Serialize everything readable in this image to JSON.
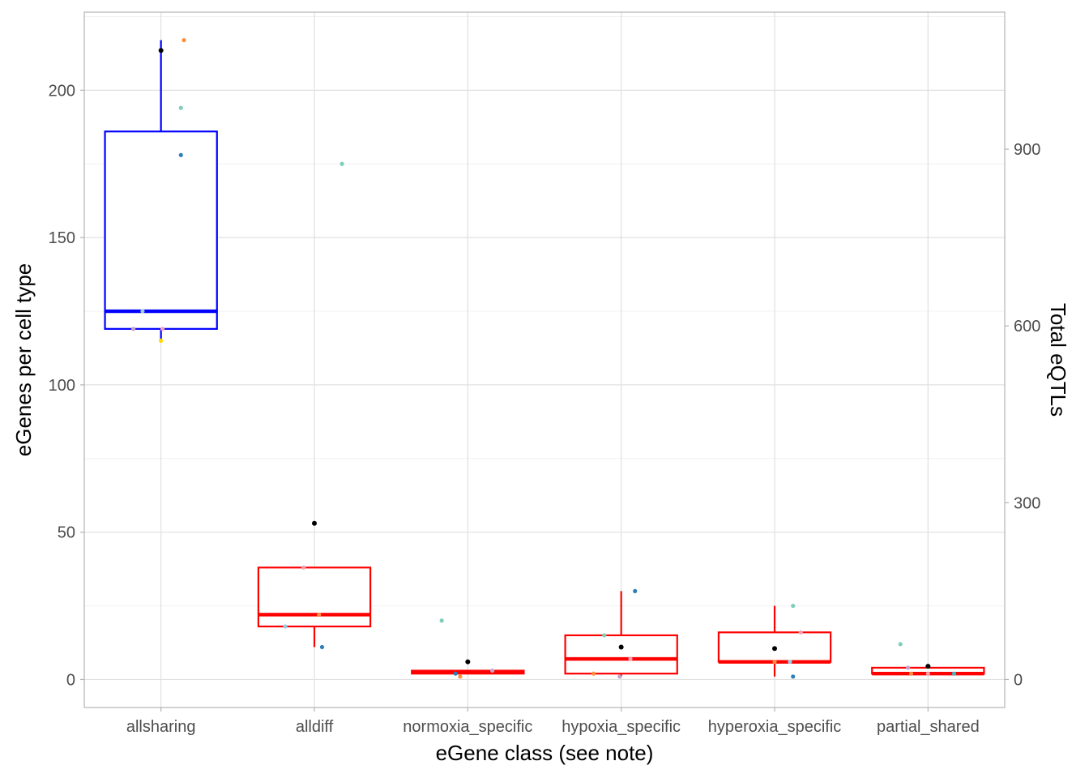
{
  "chart_data": {
    "type": "box",
    "xlabel": "eGene class (see note)",
    "ylabel": "eGenes per cell type",
    "y2label": "Total eQTLs",
    "categories": [
      "allsharing",
      "alldiff",
      "normoxia_specific",
      "hypoxia_specific",
      "hyperoxia_specific",
      "partial_shared"
    ],
    "ylim": [
      -9.5,
      226.5
    ],
    "yticks": [
      0,
      50,
      100,
      150,
      200
    ],
    "y2ticks": [
      0,
      300,
      600,
      900
    ],
    "y2_per_y": 5,
    "grid": true,
    "colors": {
      "allsharing_box": "#0000ff",
      "other_box": "#ff0000",
      "total_point": "#000000",
      "cell_points": [
        "#7fcdbb",
        "#41b6c4",
        "#2c7fb8",
        "#fd8d3c",
        "#fa9fb5",
        "#9ecae1",
        "#c6a2c9"
      ]
    },
    "boxes": [
      {
        "category": "allsharing",
        "color": "#0000ff",
        "q1": 119,
        "median": 125,
        "q3": 186,
        "whisker_low": 115,
        "whisker_high": 217
      },
      {
        "category": "alldiff",
        "color": "#ff0000",
        "q1": 18,
        "median": 22,
        "q3": 38,
        "whisker_low": 11,
        "whisker_high": 38
      },
      {
        "category": "normoxia_specific",
        "color": "#ff0000",
        "q1": 2,
        "median": 2.5,
        "q3": 3,
        "whisker_low": 2,
        "whisker_high": 3
      },
      {
        "category": "hypoxia_specific",
        "color": "#ff0000",
        "q1": 2,
        "median": 7,
        "q3": 15,
        "whisker_low": 1,
        "whisker_high": 30
      },
      {
        "category": "hyperoxia_specific",
        "color": "#ff0000",
        "q1": 6,
        "median": 6,
        "q3": 16,
        "whisker_low": 1,
        "whisker_high": 25
      },
      {
        "category": "partial_shared",
        "color": "#ff0000",
        "q1": 2,
        "median": 2,
        "q3": 4,
        "whisker_low": 2,
        "whisker_high": 4
      }
    ],
    "points": [
      {
        "category": "allsharing",
        "jitter": 0.0,
        "y": 213.5,
        "color": "#000000"
      },
      {
        "category": "allsharing",
        "jitter": 0.15,
        "y": 217,
        "color": "#fd8d3c"
      },
      {
        "category": "allsharing",
        "jitter": 0.13,
        "y": 194,
        "color": "#7fcdbb"
      },
      {
        "category": "allsharing",
        "jitter": 0.13,
        "y": 178,
        "color": "#2c7fb8"
      },
      {
        "category": "allsharing",
        "jitter": -0.12,
        "y": 125,
        "color": "#9ecae1"
      },
      {
        "category": "allsharing",
        "jitter": -0.18,
        "y": 119,
        "color": "#c6a2c9"
      },
      {
        "category": "allsharing",
        "jitter": 0.01,
        "y": 119,
        "color": "#fa9fb5"
      },
      {
        "category": "allsharing",
        "jitter": 0.0,
        "y": 115,
        "color": "#ffd700"
      },
      {
        "category": "alldiff",
        "jitter": 0.0,
        "y": 53,
        "color": "#000000"
      },
      {
        "category": "alldiff",
        "jitter": 0.18,
        "y": 175,
        "color": "#7fcdbb"
      },
      {
        "category": "alldiff",
        "jitter": -0.07,
        "y": 38,
        "color": "#fa9fb5"
      },
      {
        "category": "alldiff",
        "jitter": 0.03,
        "y": 22,
        "color": "#fd8d3c"
      },
      {
        "category": "alldiff",
        "jitter": -0.19,
        "y": 18,
        "color": "#9ecae1"
      },
      {
        "category": "alldiff",
        "jitter": 0.05,
        "y": 11,
        "color": "#2c7fb8"
      },
      {
        "category": "normoxia_specific",
        "jitter": 0.0,
        "y": 6,
        "color": "#000000"
      },
      {
        "category": "normoxia_specific",
        "jitter": -0.17,
        "y": 20,
        "color": "#7fcdbb"
      },
      {
        "category": "normoxia_specific",
        "jitter": 0.16,
        "y": 3,
        "color": "#c6a2c9"
      },
      {
        "category": "normoxia_specific",
        "jitter": -0.08,
        "y": 2,
        "color": "#2c7fb8"
      },
      {
        "category": "normoxia_specific",
        "jitter": -0.05,
        "y": 1,
        "color": "#fd8d3c"
      },
      {
        "category": "hypoxia_specific",
        "jitter": 0.0,
        "y": 11,
        "color": "#000000"
      },
      {
        "category": "hypoxia_specific",
        "jitter": 0.09,
        "y": 30,
        "color": "#2c7fb8"
      },
      {
        "category": "hypoxia_specific",
        "jitter": -0.11,
        "y": 15,
        "color": "#7fcdbb"
      },
      {
        "category": "hypoxia_specific",
        "jitter": 0.06,
        "y": 7,
        "color": "#fa9fb5"
      },
      {
        "category": "hypoxia_specific",
        "jitter": -0.18,
        "y": 2,
        "color": "#fd8d3c"
      },
      {
        "category": "hypoxia_specific",
        "jitter": -0.01,
        "y": 1,
        "color": "#c6a2c9"
      },
      {
        "category": "hyperoxia_specific",
        "jitter": 0.0,
        "y": 10.5,
        "color": "#000000"
      },
      {
        "category": "hyperoxia_specific",
        "jitter": 0.12,
        "y": 25,
        "color": "#7fcdbb"
      },
      {
        "category": "hyperoxia_specific",
        "jitter": 0.17,
        "y": 16,
        "color": "#fa9fb5"
      },
      {
        "category": "hyperoxia_specific",
        "jitter": 0.0,
        "y": 6,
        "color": "#fd8d3c"
      },
      {
        "category": "hyperoxia_specific",
        "jitter": 0.1,
        "y": 6,
        "color": "#9ecae1"
      },
      {
        "category": "hyperoxia_specific",
        "jitter": 0.12,
        "y": 1,
        "color": "#2c7fb8"
      },
      {
        "category": "partial_shared",
        "jitter": 0.0,
        "y": 4.5,
        "color": "#000000"
      },
      {
        "category": "partial_shared",
        "jitter": -0.18,
        "y": 12,
        "color": "#7fcdbb"
      },
      {
        "category": "partial_shared",
        "jitter": -0.13,
        "y": 4,
        "color": "#c6a2c9"
      },
      {
        "category": "partial_shared",
        "jitter": -0.11,
        "y": 2,
        "color": "#fd8d3c"
      },
      {
        "category": "partial_shared",
        "jitter": 0.0,
        "y": 2,
        "color": "#fa9fb5"
      },
      {
        "category": "partial_shared",
        "jitter": 0.17,
        "y": 2,
        "color": "#41b6c4"
      }
    ]
  }
}
